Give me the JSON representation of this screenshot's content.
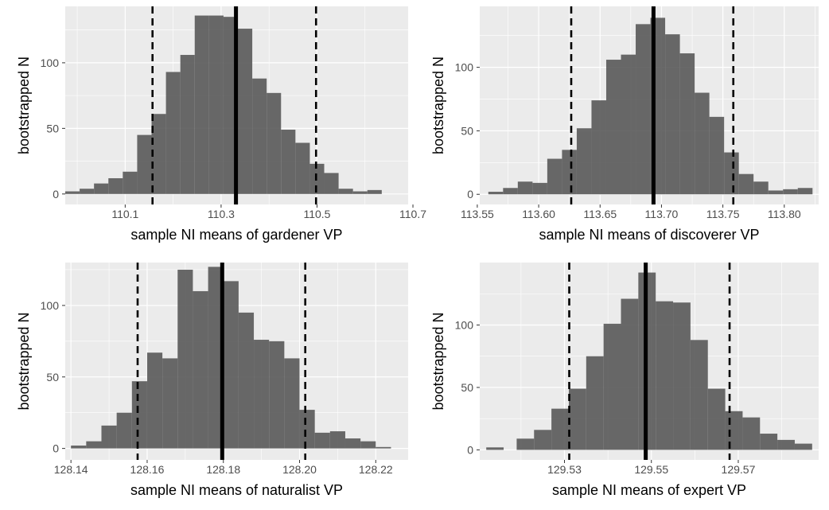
{
  "chart_data": [
    {
      "type": "bar",
      "xlabel": "sample NI means of gardener VP",
      "ylabel": "bootstrapped N",
      "xlim": [
        109.975,
        110.69
      ],
      "ylim": [
        -8,
        143
      ],
      "xticks": [
        "110.1",
        "110.3",
        "110.5",
        "110.7"
      ],
      "yticks": [
        0,
        50,
        100
      ],
      "bins": [
        {
          "x": 109.99,
          "v": 2
        },
        {
          "x": 110.02,
          "v": 4
        },
        {
          "x": 110.05,
          "v": 8
        },
        {
          "x": 110.08,
          "v": 12
        },
        {
          "x": 110.11,
          "v": 17
        },
        {
          "x": 110.14,
          "v": 45
        },
        {
          "x": 110.17,
          "v": 61
        },
        {
          "x": 110.2,
          "v": 93
        },
        {
          "x": 110.23,
          "v": 106
        },
        {
          "x": 110.26,
          "v": 136
        },
        {
          "x": 110.29,
          "v": 136
        },
        {
          "x": 110.32,
          "v": 135
        },
        {
          "x": 110.35,
          "v": 126
        },
        {
          "x": 110.38,
          "v": 88
        },
        {
          "x": 110.41,
          "v": 77
        },
        {
          "x": 110.44,
          "v": 49
        },
        {
          "x": 110.47,
          "v": 39
        },
        {
          "x": 110.5,
          "v": 23
        },
        {
          "x": 110.53,
          "v": 16
        },
        {
          "x": 110.56,
          "v": 4
        },
        {
          "x": 110.59,
          "v": 2
        },
        {
          "x": 110.62,
          "v": 3
        }
      ],
      "bin_width": 0.03,
      "mean": 110.331,
      "ci": [
        110.157,
        110.498
      ]
    },
    {
      "type": "bar",
      "xlabel": "sample NI means of discoverer VP",
      "ylabel": "bootstrapped N",
      "xlim": [
        113.552,
        113.828
      ],
      "ylim": [
        -8,
        148
      ],
      "xticks": [
        "113.55",
        "113.60",
        "113.65",
        "113.70",
        "113.75",
        "113.80"
      ],
      "yticks": [
        0,
        50,
        100
      ],
      "bins": [
        {
          "x": 113.565,
          "v": 2
        },
        {
          "x": 113.577,
          "v": 5
        },
        {
          "x": 113.589,
          "v": 10
        },
        {
          "x": 113.601,
          "v": 9
        },
        {
          "x": 113.613,
          "v": 28
        },
        {
          "x": 113.625,
          "v": 35
        },
        {
          "x": 113.637,
          "v": 52
        },
        {
          "x": 113.649,
          "v": 74
        },
        {
          "x": 113.661,
          "v": 106
        },
        {
          "x": 113.673,
          "v": 110
        },
        {
          "x": 113.685,
          "v": 134
        },
        {
          "x": 113.697,
          "v": 139
        },
        {
          "x": 113.709,
          "v": 126
        },
        {
          "x": 113.721,
          "v": 111
        },
        {
          "x": 113.733,
          "v": 80
        },
        {
          "x": 113.745,
          "v": 61
        },
        {
          "x": 113.757,
          "v": 33
        },
        {
          "x": 113.769,
          "v": 16
        },
        {
          "x": 113.781,
          "v": 10
        },
        {
          "x": 113.793,
          "v": 3
        },
        {
          "x": 113.805,
          "v": 4
        },
        {
          "x": 113.817,
          "v": 5
        }
      ],
      "bin_width": 0.012,
      "mean": 113.6935,
      "ci": [
        113.6265,
        113.7585
      ]
    },
    {
      "type": "bar",
      "xlabel": "sample NI means of naturalist VP",
      "ylabel": "bootstrapped N",
      "xlim": [
        128.1385,
        128.2285
      ],
      "ylim": [
        -8,
        130
      ],
      "xticks": [
        "128.14",
        "128.16",
        "128.18",
        "128.20",
        "128.22"
      ],
      "yticks": [
        0,
        50,
        100
      ],
      "bins": [
        {
          "x": 128.142,
          "v": 2
        },
        {
          "x": 128.146,
          "v": 5
        },
        {
          "x": 128.15,
          "v": 16
        },
        {
          "x": 128.154,
          "v": 25
        },
        {
          "x": 128.158,
          "v": 47
        },
        {
          "x": 128.162,
          "v": 67
        },
        {
          "x": 128.166,
          "v": 63
        },
        {
          "x": 128.17,
          "v": 125
        },
        {
          "x": 128.174,
          "v": 110
        },
        {
          "x": 128.178,
          "v": 127
        },
        {
          "x": 128.182,
          "v": 117
        },
        {
          "x": 128.186,
          "v": 95
        },
        {
          "x": 128.19,
          "v": 76
        },
        {
          "x": 128.194,
          "v": 75
        },
        {
          "x": 128.198,
          "v": 63
        },
        {
          "x": 128.202,
          "v": 27
        },
        {
          "x": 128.206,
          "v": 11
        },
        {
          "x": 128.21,
          "v": 12
        },
        {
          "x": 128.214,
          "v": 7
        },
        {
          "x": 128.218,
          "v": 5
        },
        {
          "x": 128.222,
          "v": 1
        }
      ],
      "bin_width": 0.004,
      "mean": 128.1797,
      "ci": [
        128.1575,
        128.2015
      ]
    },
    {
      "type": "bar",
      "xlabel": "sample NI means of expert VP",
      "ylabel": "bootstrapped N",
      "xlim": [
        129.5105,
        129.5885
      ],
      "ylim": [
        -8,
        150
      ],
      "xticks": [
        "129.53",
        "129.55",
        "129.57"
      ],
      "yticks": [
        0,
        50,
        100
      ],
      "bins": [
        {
          "x": 129.514,
          "v": 2
        },
        {
          "x": 129.521,
          "v": 9
        },
        {
          "x": 129.525,
          "v": 16
        },
        {
          "x": 129.529,
          "v": 33
        },
        {
          "x": 129.533,
          "v": 49
        },
        {
          "x": 129.537,
          "v": 75
        },
        {
          "x": 129.541,
          "v": 101
        },
        {
          "x": 129.545,
          "v": 121
        },
        {
          "x": 129.549,
          "v": 142
        },
        {
          "x": 129.553,
          "v": 119
        },
        {
          "x": 129.557,
          "v": 118
        },
        {
          "x": 129.561,
          "v": 88
        },
        {
          "x": 129.565,
          "v": 49
        },
        {
          "x": 129.569,
          "v": 31
        },
        {
          "x": 129.573,
          "v": 26
        },
        {
          "x": 129.577,
          "v": 13
        },
        {
          "x": 129.581,
          "v": 8
        },
        {
          "x": 129.585,
          "v": 5
        }
      ],
      "bin_width": 0.004,
      "mean": 129.5487,
      "ci": [
        129.5311,
        129.568
      ]
    }
  ],
  "colors": {
    "panel_bg": "#ebebeb",
    "grid": "#ffffff",
    "bar": "#595959",
    "line": "#000000",
    "tick_text": "#4d4d4d",
    "label_text": "#000000"
  }
}
